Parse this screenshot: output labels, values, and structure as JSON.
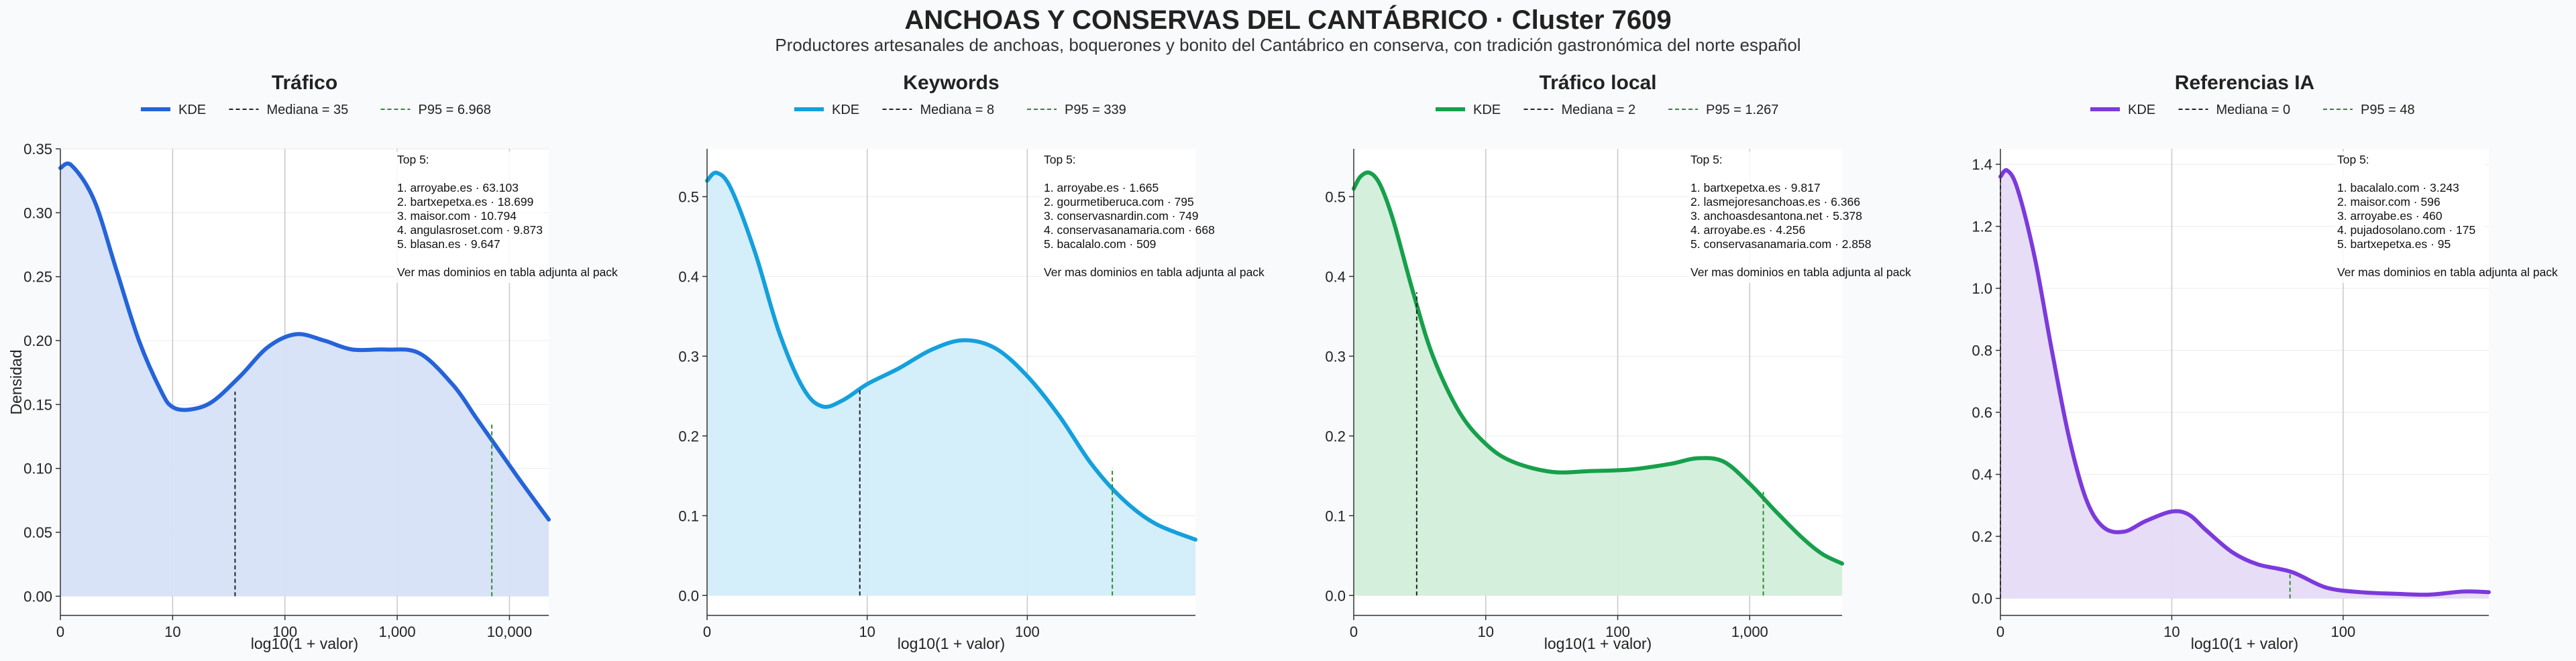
{
  "title": "ANCHOAS Y CONSERVAS DEL CANTÁBRICO · Cluster 7609",
  "subtitle": "Productores artesanales de anchoas, boquerones y bonito del Cantábrico en conserva, con tradición gastronómica del norte español",
  "colors": {
    "background": "#f8fafc",
    "grid": "#c8c8c8",
    "median_line": "#222222",
    "p95_line": "#2e8b2e"
  },
  "chart_data": [
    {
      "type": "area",
      "title": "Tráfico",
      "xlabel": "log10(1 + valor)",
      "ylabel": "Densidad",
      "x_scale": "log10(1 + valor)",
      "xlim": [
        0,
        4.35
      ],
      "ylim": [
        -0.015,
        0.35
      ],
      "x_ticks": [
        {
          "log": 0,
          "label": "0"
        },
        {
          "log": 1,
          "label": "10"
        },
        {
          "log": 2,
          "label": "100"
        },
        {
          "log": 3,
          "label": "1,000"
        },
        {
          "log": 4,
          "label": "10,000"
        }
      ],
      "y_ticks": [
        {
          "value": 0,
          "label": "0.00"
        },
        {
          "value": 0.05,
          "label": "0.05"
        },
        {
          "value": 0.1,
          "label": "0.10"
        },
        {
          "value": 0.15,
          "label": "0.15"
        },
        {
          "value": 0.2,
          "label": "0.20"
        },
        {
          "value": 0.25,
          "label": "0.25"
        },
        {
          "value": 0.3,
          "label": "0.30"
        },
        {
          "value": 0.35,
          "label": "0.35"
        }
      ],
      "color": "#2563d9",
      "fill": "#d6e1f7",
      "series": [
        {
          "name": "KDE",
          "x": [
            0,
            0.1,
            0.3,
            0.5,
            0.7,
            0.9,
            1.0,
            1.15,
            1.35,
            1.6,
            1.85,
            2.1,
            2.35,
            2.6,
            2.9,
            3.2,
            3.5,
            3.7,
            3.9,
            4.1,
            4.35
          ],
          "y": [
            0.335,
            0.337,
            0.31,
            0.255,
            0.2,
            0.16,
            0.148,
            0.146,
            0.152,
            0.172,
            0.195,
            0.205,
            0.2,
            0.193,
            0.193,
            0.19,
            0.165,
            0.14,
            0.115,
            0.09,
            0.06
          ]
        }
      ],
      "legend": [
        {
          "label": "KDE",
          "style": "solid"
        },
        {
          "label": "Mediana = 35",
          "style": "dashed-black"
        },
        {
          "label": "P95 = 6.968",
          "style": "dashed-green"
        }
      ],
      "median": {
        "value": 35,
        "log": 1.556,
        "y": 0.16
      },
      "p95": {
        "value": 6968,
        "log": 3.843,
        "y": 0.135
      },
      "annotation": [
        "Top 5:",
        "",
        "1. arroyabe.es · 63.103",
        "2. bartxepetxa.es · 18.699",
        "3. maisor.com · 10.794",
        "4. angulasroset.com · 9.873",
        "5. blasan.es · 9.647",
        "",
        "Ver mas dominios en tabla adjunta al pack"
      ]
    },
    {
      "type": "area",
      "title": "Keywords",
      "xlabel": "log10(1 + valor)",
      "ylabel": "",
      "x_scale": "log10(1 + valor)",
      "xlim": [
        0,
        3.05
      ],
      "ylim": [
        -0.025,
        0.56
      ],
      "x_ticks": [
        {
          "log": 0,
          "label": "0"
        },
        {
          "log": 1,
          "label": "10"
        },
        {
          "log": 2,
          "label": "100"
        }
      ],
      "y_ticks": [
        {
          "value": 0,
          "label": "0.0"
        },
        {
          "value": 0.1,
          "label": "0.1"
        },
        {
          "value": 0.2,
          "label": "0.2"
        },
        {
          "value": 0.3,
          "label": "0.3"
        },
        {
          "value": 0.4,
          "label": "0.4"
        },
        {
          "value": 0.5,
          "label": "0.5"
        }
      ],
      "color": "#14a0dc",
      "fill": "#d2edfa",
      "series": [
        {
          "name": "KDE",
          "x": [
            0,
            0.06,
            0.15,
            0.3,
            0.45,
            0.6,
            0.72,
            0.85,
            1.0,
            1.2,
            1.4,
            1.6,
            1.8,
            2.0,
            2.2,
            2.4,
            2.6,
            2.8,
            3.05
          ],
          "y": [
            0.52,
            0.53,
            0.51,
            0.43,
            0.33,
            0.26,
            0.237,
            0.245,
            0.265,
            0.285,
            0.308,
            0.32,
            0.31,
            0.275,
            0.225,
            0.165,
            0.12,
            0.09,
            0.07
          ]
        }
      ],
      "legend": [
        {
          "label": "KDE",
          "style": "solid"
        },
        {
          "label": "Mediana = 8",
          "style": "dashed-black"
        },
        {
          "label": "P95 = 339",
          "style": "dashed-green"
        }
      ],
      "median": {
        "value": 8,
        "log": 0.954,
        "y": 0.26
      },
      "p95": {
        "value": 339,
        "log": 2.531,
        "y": 0.16
      },
      "annotation": [
        "Top 5:",
        "",
        "1. arroyabe.es · 1.665",
        "2. gourmetiberuca.com · 795",
        "3. conservasnardin.com · 749",
        "4. conservasanamaria.com · 668",
        "5. bacalalo.com · 509",
        "",
        "Ver mas dominios en tabla adjunta al pack"
      ]
    },
    {
      "type": "area",
      "title": "Tráfico local",
      "xlabel": "log10(1 + valor)",
      "ylabel": "",
      "x_scale": "log10(1 + valor)",
      "xlim": [
        0,
        3.7
      ],
      "ylim": [
        -0.025,
        0.56
      ],
      "x_ticks": [
        {
          "log": 0,
          "label": "0"
        },
        {
          "log": 1,
          "label": "10"
        },
        {
          "log": 2,
          "label": "100"
        },
        {
          "log": 3,
          "label": "1,000"
        }
      ],
      "y_ticks": [
        {
          "value": 0,
          "label": "0.0"
        },
        {
          "value": 0.1,
          "label": "0.1"
        },
        {
          "value": 0.2,
          "label": "0.2"
        },
        {
          "value": 0.3,
          "label": "0.3"
        },
        {
          "value": 0.4,
          "label": "0.4"
        },
        {
          "value": 0.5,
          "label": "0.5"
        }
      ],
      "color": "#16a04b",
      "fill": "#d2eeda",
      "series": [
        {
          "name": "KDE",
          "x": [
            0,
            0.05,
            0.12,
            0.2,
            0.3,
            0.45,
            0.6,
            0.8,
            1.0,
            1.2,
            1.5,
            1.8,
            2.1,
            2.4,
            2.6,
            2.8,
            3.0,
            3.2,
            3.4,
            3.55,
            3.7
          ],
          "y": [
            0.51,
            0.525,
            0.53,
            0.515,
            0.47,
            0.38,
            0.3,
            0.23,
            0.19,
            0.168,
            0.155,
            0.156,
            0.158,
            0.165,
            0.172,
            0.168,
            0.14,
            0.105,
            0.072,
            0.052,
            0.04
          ]
        }
      ],
      "legend": [
        {
          "label": "KDE",
          "style": "solid"
        },
        {
          "label": "Mediana = 2",
          "style": "dashed-black"
        },
        {
          "label": "P95 = 1.267",
          "style": "dashed-green"
        }
      ],
      "median": {
        "value": 2,
        "log": 0.477,
        "y": 0.38
      },
      "p95": {
        "value": 1267,
        "log": 3.103,
        "y": 0.13
      },
      "annotation": [
        "Top 5:",
        "",
        "1. bartxepetxa.es · 9.817",
        "2. lasmejoresanchoas.es · 6.366",
        "3. anchoasdesantona.net · 5.378",
        "4. arroyabe.es · 4.256",
        "5. conservasanamaria.com · 2.858",
        "",
        "Ver mas dominios en tabla adjunta al pack"
      ]
    },
    {
      "type": "area",
      "title": "Referencias IA",
      "xlabel": "log10(1 + valor)",
      "ylabel": "",
      "x_scale": "log10(1 + valor)",
      "xlim": [
        0,
        2.85
      ],
      "ylim": [
        -0.055,
        1.45
      ],
      "x_ticks": [
        {
          "log": 0,
          "label": "0"
        },
        {
          "log": 1,
          "label": "10"
        },
        {
          "log": 2,
          "label": "100"
        }
      ],
      "y_ticks": [
        {
          "value": 0,
          "label": "0.0"
        },
        {
          "value": 0.2,
          "label": "0.2"
        },
        {
          "value": 0.4,
          "label": "0.4"
        },
        {
          "value": 0.6,
          "label": "0.6"
        },
        {
          "value": 0.8,
          "label": "0.8"
        },
        {
          "value": 1.0,
          "label": "1.0"
        },
        {
          "value": 1.2,
          "label": "1.2"
        },
        {
          "value": 1.4,
          "label": "1.4"
        }
      ],
      "color": "#7c3adb",
      "fill": "#e6dbf7",
      "series": [
        {
          "name": "KDE",
          "x": [
            0,
            0.04,
            0.1,
            0.2,
            0.3,
            0.4,
            0.5,
            0.6,
            0.72,
            0.85,
            1.0,
            1.1,
            1.2,
            1.35,
            1.5,
            1.7,
            1.9,
            2.1,
            2.3,
            2.5,
            2.7,
            2.85
          ],
          "y": [
            1.36,
            1.38,
            1.32,
            1.1,
            0.8,
            0.52,
            0.32,
            0.23,
            0.215,
            0.25,
            0.28,
            0.27,
            0.22,
            0.15,
            0.11,
            0.085,
            0.035,
            0.02,
            0.015,
            0.012,
            0.022,
            0.02
          ]
        }
      ],
      "legend": [
        {
          "label": "KDE",
          "style": "solid"
        },
        {
          "label": "Mediana = 0",
          "style": "dashed-black"
        },
        {
          "label": "P95 = 48",
          "style": "dashed-green"
        }
      ],
      "median": {
        "value": 0,
        "log": 0,
        "y": 1.36
      },
      "p95": {
        "value": 48,
        "log": 1.69,
        "y": 0.085
      },
      "annotation": [
        "Top 5:",
        "",
        "1. bacalalo.com · 3.243",
        "2. maisor.com · 596",
        "3. arroyabe.es · 460",
        "4. pujadosolano.com · 175",
        "5. bartxepetxa.es · 95",
        "",
        "Ver mas dominios en tabla adjunta al pack"
      ]
    }
  ]
}
